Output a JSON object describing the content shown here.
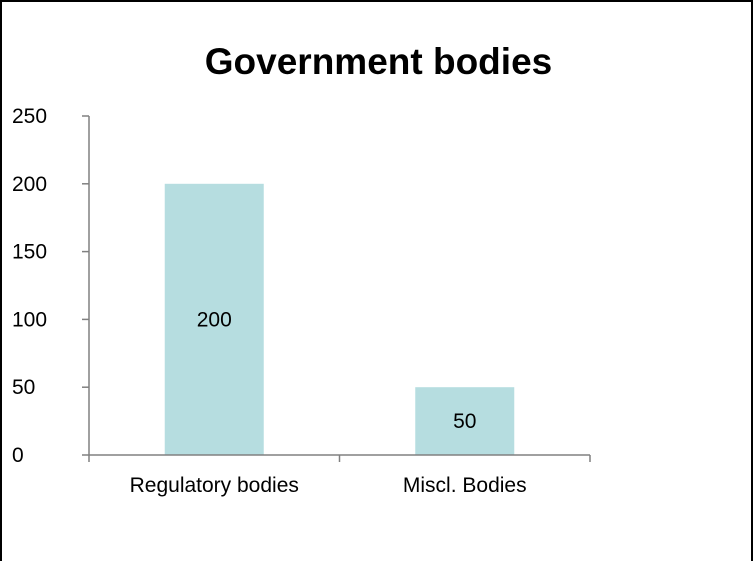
{
  "chart_data": {
    "type": "bar",
    "title": "Government bodies",
    "categories": [
      "Regulatory bodies",
      "Miscl. Bodies"
    ],
    "values": [
      200,
      50
    ],
    "data_labels": [
      "200",
      "50"
    ],
    "xlabel": "",
    "ylabel": "",
    "ylim": [
      0,
      250
    ],
    "yticks": [
      0,
      50,
      100,
      150,
      200,
      250
    ],
    "ytick_labels": [
      "0",
      "50",
      "100",
      "150",
      "200",
      "250"
    ],
    "grid": false,
    "legend": "none",
    "bar_color": "#b6dde0"
  }
}
